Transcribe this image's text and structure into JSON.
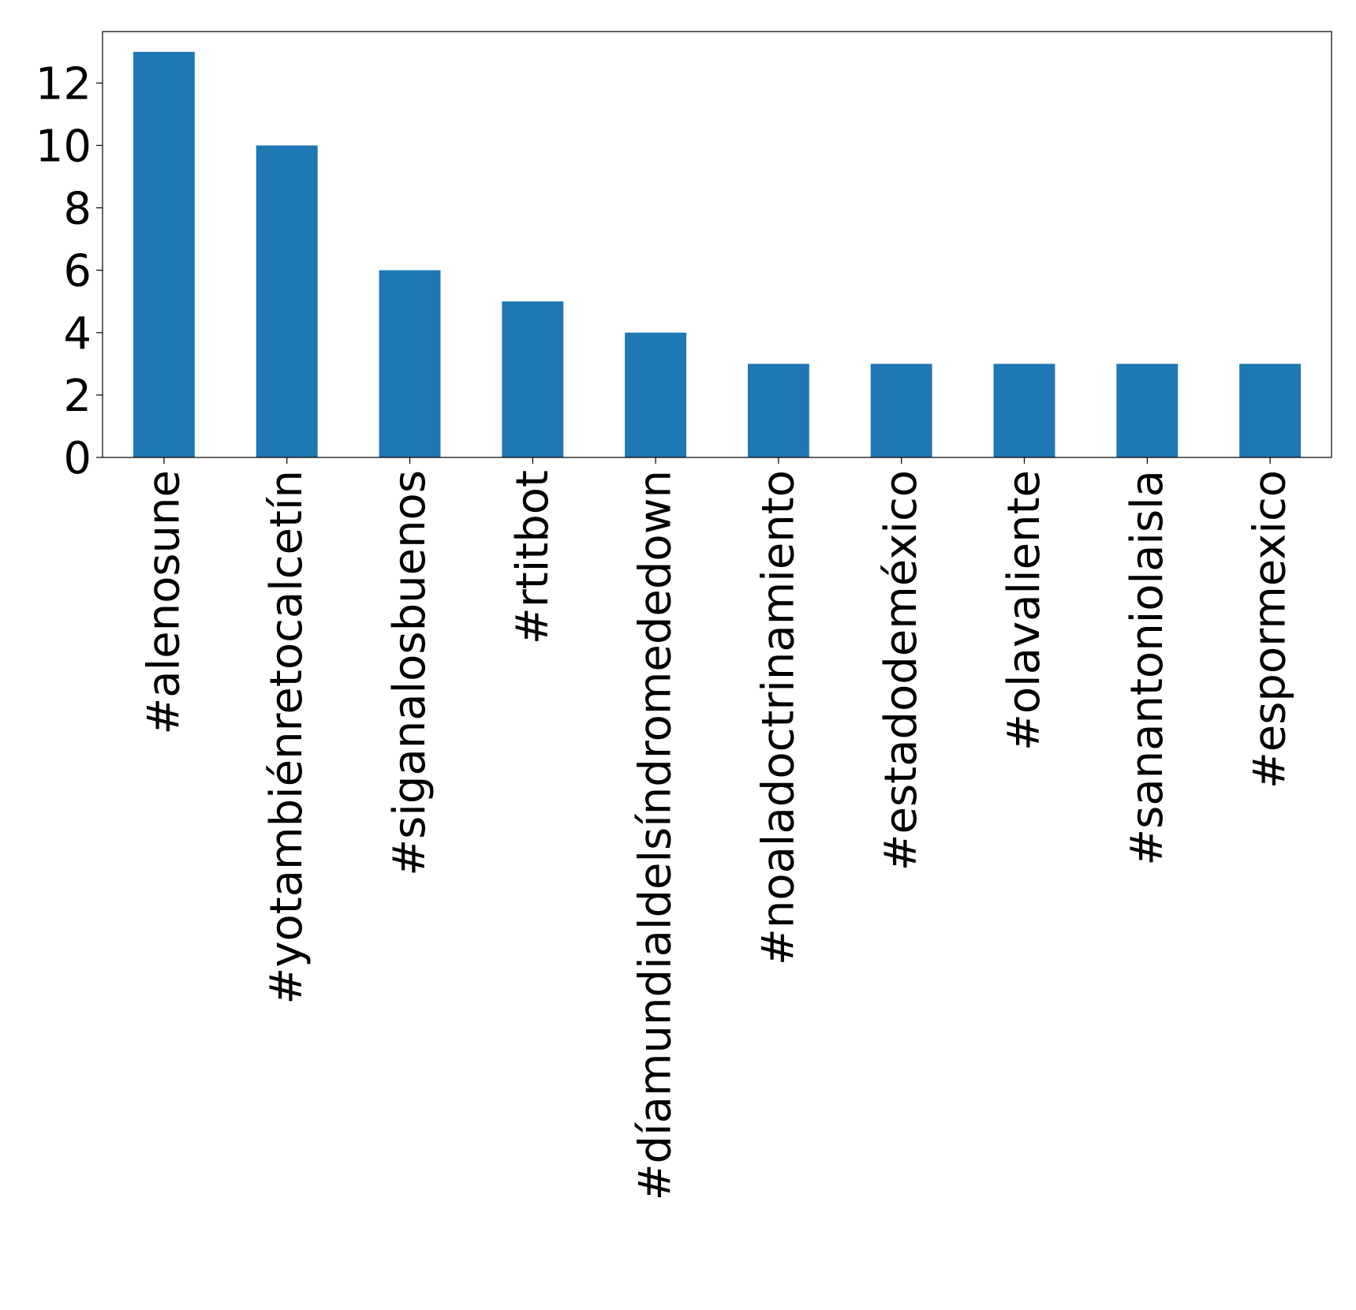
{
  "chart_data": {
    "type": "bar",
    "title": "",
    "xlabel": "",
    "ylabel": "",
    "categories": [
      "#alenosune",
      "#yotambiénretocalcetín",
      "#siganalosbuenos",
      "#rtitbot",
      "#díamundialdelsíndromededown",
      "#noaladoctrinamiento",
      "#estadodeméxico",
      "#olavaliente",
      "#sanantoniolaisla",
      "#espormexico"
    ],
    "values": [
      13,
      10,
      6,
      5,
      4,
      3,
      3,
      3,
      3,
      3
    ],
    "ylim": [
      0,
      13.65
    ],
    "yticks": [
      0,
      2,
      4,
      6,
      8,
      10,
      12
    ],
    "grid": false,
    "legend": "none",
    "colors": {
      "bar": "#1f77b4",
      "axis": "#000000",
      "background": "#ffffff"
    }
  }
}
